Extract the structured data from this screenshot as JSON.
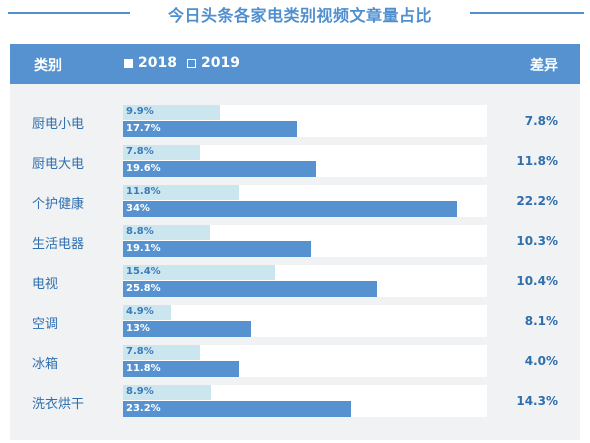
{
  "title": "今日头条各家电类别视频文章量占比",
  "header": {
    "category": "类别",
    "legend_2018": "2018",
    "legend_2019": "2019",
    "difference": "差异"
  },
  "colors": {
    "accent": "#5592cf",
    "series_2018": "#cbe6ee",
    "series_2019": "#5592cf",
    "text": "#2f6fae"
  },
  "chart_data": {
    "type": "bar",
    "title": "今日头条各家电类别视频文章量占比",
    "categories": [
      "厨电小电",
      "厨电大电",
      "个护健康",
      "生活电器",
      "电视",
      "空调",
      "冰箱",
      "洗衣烘干"
    ],
    "series": [
      {
        "name": "2018",
        "values": [
          9.9,
          7.8,
          11.8,
          8.8,
          15.4,
          4.9,
          7.8,
          8.9
        ],
        "labels": [
          "9.9%",
          "7.8%",
          "11.8%",
          "8.8%",
          "15.4%",
          "4.9%",
          "7.8%",
          "8.9%"
        ]
      },
      {
        "name": "2019",
        "values": [
          17.7,
          19.6,
          34,
          19.1,
          25.8,
          13,
          11.8,
          23.2
        ],
        "labels": [
          "17.7%",
          "19.6%",
          "34%",
          "19.1%",
          "25.8%",
          "13%",
          "11.8%",
          "23.2%"
        ]
      }
    ],
    "differences": [
      "7.8%",
      "11.8%",
      "22.2%",
      "10.3%",
      "10.4%",
      "8.1%",
      "4.0%",
      "14.3%"
    ],
    "xlim": [
      0,
      37
    ],
    "orientation": "horizontal",
    "legend_position": "top"
  }
}
